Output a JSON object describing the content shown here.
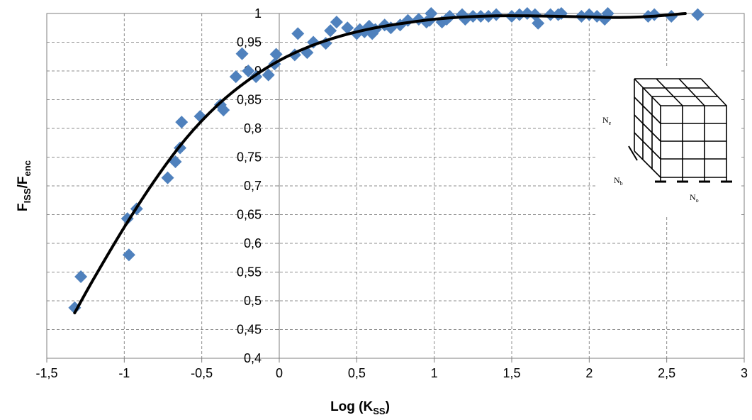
{
  "chart_data": {
    "type": "scatter",
    "xlabel": {
      "main": "Log (K",
      "sub": "SS",
      "close": ")"
    },
    "ylabel": {
      "a": "F",
      "a_sub": "ISS",
      "slash": "/F",
      "b_sub": "enc"
    },
    "xlim": [
      -1.5,
      3
    ],
    "ylim": [
      0.4,
      1
    ],
    "x_ticks": [
      -1.5,
      -1,
      -0.5,
      0,
      0.5,
      1,
      1.5,
      2,
      2.5,
      3
    ],
    "x_tick_labels": [
      "-1,5",
      "-1",
      "-0,5",
      "0",
      "0,5",
      "1",
      "1,5",
      "2",
      "2,5",
      "3"
    ],
    "y_ticks": [
      0.4,
      0.45,
      0.5,
      0.55,
      0.6,
      0.65,
      0.7,
      0.75,
      0.8,
      0.85,
      0.9,
      0.95,
      1
    ],
    "y_tick_labels": [
      "0,4",
      "0,45",
      "0,5",
      "0,55",
      "0,6",
      "0,65",
      "0,7",
      "0,75",
      "0,8",
      "0,85",
      "0,9",
      "0,95",
      "1"
    ],
    "grid": true,
    "marker_color": "#4F81BD",
    "curve_color": "#000000",
    "series": [
      {
        "kind": "points",
        "points": [
          [
            -1.32,
            0.488
          ],
          [
            -1.28,
            0.542
          ],
          [
            -0.98,
            0.643
          ],
          [
            -0.97,
            0.58
          ],
          [
            -0.92,
            0.66
          ],
          [
            -0.72,
            0.714
          ],
          [
            -0.67,
            0.742
          ],
          [
            -0.64,
            0.766
          ],
          [
            -0.63,
            0.811
          ],
          [
            -0.51,
            0.821
          ],
          [
            -0.38,
            0.841
          ],
          [
            -0.36,
            0.832
          ],
          [
            -0.28,
            0.89
          ],
          [
            -0.24,
            0.93
          ],
          [
            -0.2,
            0.9
          ],
          [
            -0.15,
            0.89
          ],
          [
            -0.07,
            0.893
          ],
          [
            -0.03,
            0.912
          ],
          [
            -0.02,
            0.929
          ],
          [
            0.1,
            0.928
          ],
          [
            0.12,
            0.965
          ],
          [
            0.18,
            0.932
          ],
          [
            0.22,
            0.95
          ],
          [
            0.3,
            0.948
          ],
          [
            0.33,
            0.97
          ],
          [
            0.37,
            0.985
          ],
          [
            0.44,
            0.975
          ],
          [
            0.5,
            0.965
          ],
          [
            0.52,
            0.972
          ],
          [
            0.55,
            0.968
          ],
          [
            0.58,
            0.978
          ],
          [
            0.6,
            0.965
          ],
          [
            0.62,
            0.972
          ],
          [
            0.68,
            0.98
          ],
          [
            0.72,
            0.975
          ],
          [
            0.78,
            0.98
          ],
          [
            0.83,
            0.988
          ],
          [
            0.9,
            0.99
          ],
          [
            0.95,
            0.985
          ],
          [
            0.97,
            0.988
          ],
          [
            0.98,
            1.0
          ],
          [
            1.05,
            0.985
          ],
          [
            1.08,
            0.99
          ],
          [
            1.1,
            0.995
          ],
          [
            1.18,
            0.998
          ],
          [
            1.2,
            0.99
          ],
          [
            1.25,
            0.995
          ],
          [
            1.3,
            0.995
          ],
          [
            1.35,
            0.995
          ],
          [
            1.4,
            0.998
          ],
          [
            1.5,
            0.995
          ],
          [
            1.55,
            0.998
          ],
          [
            1.6,
            1.0
          ],
          [
            1.65,
            0.998
          ],
          [
            1.67,
            0.983
          ],
          [
            1.75,
            0.998
          ],
          [
            1.8,
            0.998
          ],
          [
            1.82,
            1.0
          ],
          [
            1.95,
            0.995
          ],
          [
            2.0,
            0.998
          ],
          [
            2.05,
            0.995
          ],
          [
            2.1,
            0.99
          ],
          [
            2.12,
            1.0
          ],
          [
            2.38,
            0.995
          ],
          [
            2.42,
            0.998
          ],
          [
            2.53,
            0.995
          ],
          [
            2.7,
            0.998
          ]
        ]
      },
      {
        "kind": "fit-curve",
        "points": [
          [
            -1.32,
            0.479
          ],
          [
            -1.2,
            0.537
          ],
          [
            -1.0,
            0.628
          ],
          [
            -0.8,
            0.711
          ],
          [
            -0.6,
            0.783
          ],
          [
            -0.4,
            0.84
          ],
          [
            -0.2,
            0.884
          ],
          [
            0.0,
            0.918
          ],
          [
            0.2,
            0.943
          ],
          [
            0.4,
            0.961
          ],
          [
            0.6,
            0.974
          ],
          [
            0.8,
            0.983
          ],
          [
            1.0,
            0.99
          ],
          [
            1.2,
            0.994
          ],
          [
            1.4,
            0.996
          ],
          [
            1.6,
            0.996
          ],
          [
            1.8,
            0.995
          ],
          [
            2.0,
            0.994
          ],
          [
            2.2,
            0.993
          ],
          [
            2.4,
            0.995
          ],
          [
            2.62,
            1.0
          ]
        ]
      }
    ],
    "inset": {
      "labels": {
        "ne": "N",
        "ne_sub": "e",
        "nb": "N",
        "nb_sub": "b",
        "no": "N",
        "no_sub": "o"
      }
    }
  }
}
